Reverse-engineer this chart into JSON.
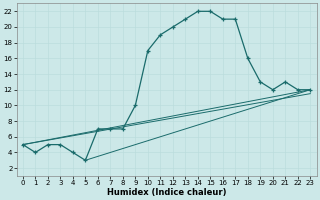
{
  "xlabel": "Humidex (Indice chaleur)",
  "bg_color": "#cce8e8",
  "grid_color": "#bbdddd",
  "line_color": "#1a6b6b",
  "xlim": [
    -0.5,
    23.5
  ],
  "ylim": [
    1,
    23
  ],
  "xticks": [
    0,
    1,
    2,
    3,
    4,
    5,
    6,
    7,
    8,
    9,
    10,
    11,
    12,
    13,
    14,
    15,
    16,
    17,
    18,
    19,
    20,
    21,
    22,
    23
  ],
  "yticks": [
    2,
    4,
    6,
    8,
    10,
    12,
    14,
    16,
    18,
    20,
    22
  ],
  "series": [
    [
      0,
      5
    ],
    [
      1,
      4
    ],
    [
      2,
      5
    ],
    [
      3,
      5
    ],
    [
      4,
      4
    ],
    [
      5,
      3
    ],
    [
      6,
      7
    ],
    [
      7,
      7
    ],
    [
      8,
      7
    ],
    [
      9,
      10
    ],
    [
      10,
      17
    ],
    [
      11,
      19
    ],
    [
      12,
      20
    ],
    [
      13,
      21
    ],
    [
      14,
      22
    ],
    [
      15,
      22
    ],
    [
      16,
      21
    ],
    [
      17,
      21
    ],
    [
      18,
      16
    ],
    [
      19,
      13
    ],
    [
      20,
      12
    ],
    [
      21,
      13
    ],
    [
      22,
      12
    ],
    [
      23,
      12
    ]
  ],
  "trend_lines": [
    [
      [
        0,
        5
      ],
      [
        23,
        12
      ]
    ],
    [
      [
        0,
        5
      ],
      [
        23,
        11.5
      ]
    ],
    [
      [
        5,
        3
      ],
      [
        23,
        12
      ]
    ]
  ]
}
